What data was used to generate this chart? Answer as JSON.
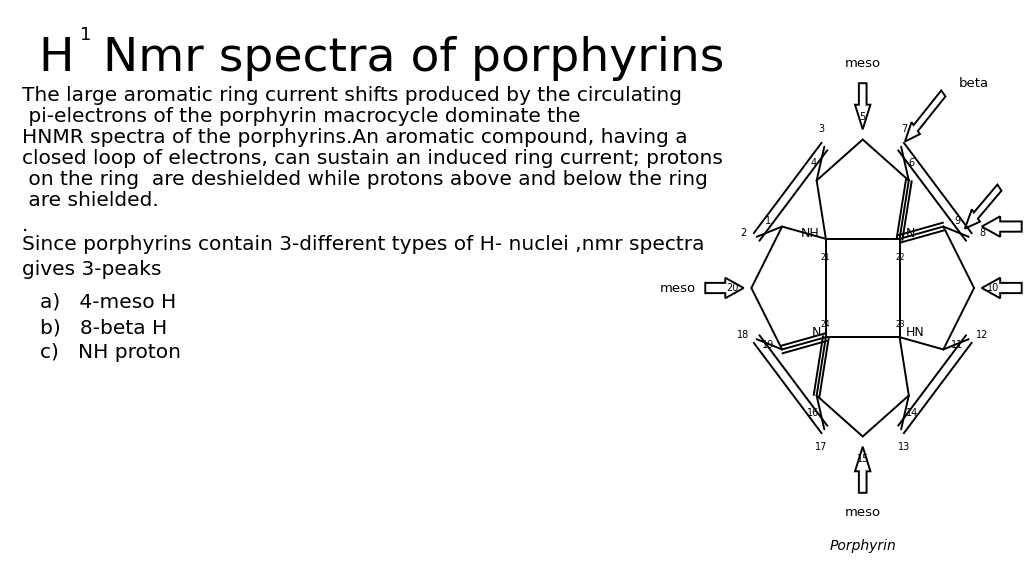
{
  "title_H": "H",
  "title_sup": "1",
  "title_rest": " Nmr spectra of porphyrins",
  "paragraph1_lines": [
    "The large aromatic ring current shifts produced by the circulating",
    " pi-electrons of the porphyrin macrocycle dominate the",
    "HNMR spectra of the porphyrins.An aromatic compound, having a",
    "closed loop of electrons, can sustain an induced ring current; protons",
    " on the ring  are deshielded while protons above and below the ring",
    " are shielded."
  ],
  "dot": ".",
  "paragraph2": "Since porphyrins contain 3-different types of H- nuclei ,nmr spectra",
  "paragraph3": "gives 3-peaks",
  "list_a": "a)   4-meso H",
  "list_b": "b)   8-beta H",
  "list_c": "c)   NH proton",
  "background": "#ffffff",
  "text_color": "#000000",
  "title_fontsize": 34,
  "body_fontsize": 14.5
}
